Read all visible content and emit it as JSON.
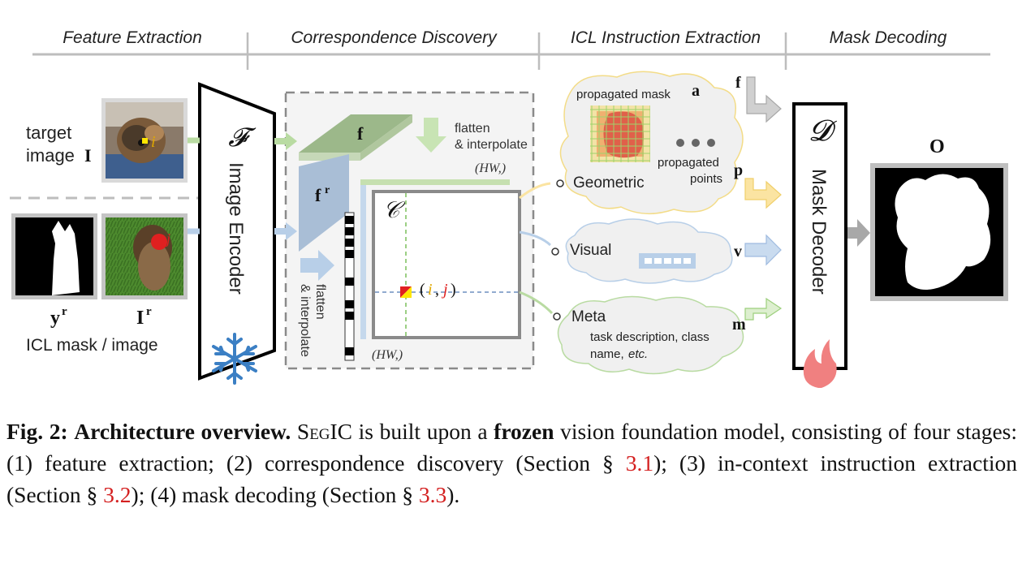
{
  "stages": [
    "Feature Extraction",
    "Correspondence Discovery",
    "ICL Instruction Extraction",
    "Mask Decoding"
  ],
  "inputs": {
    "target_label_line1": "target",
    "target_label_line2": "image",
    "target_symbol": "I",
    "point_label": "i",
    "ref_mask_symbol": "y",
    "ref_image_symbol": "I",
    "ref_superscript": "r",
    "ref_point_label": "j",
    "icl_label": "ICL mask / image"
  },
  "encoder": {
    "symbol": "𝓕",
    "label": "Image Encoder"
  },
  "correspondence": {
    "f_label": "f",
    "fr_label": "f",
    "fr_sup": "r",
    "flatten_top_1": "flatten",
    "flatten_top_2": "& interpolate",
    "flatten_side_1": "flatten",
    "flatten_side_2": "& interpolate",
    "hw_top": "(HW,)",
    "hw_bottom": "(HW,)",
    "C_symbol": "𝒞",
    "ij_open": "(",
    "ij_i": "i",
    "ij_comma": ",",
    "ij_j": "j",
    "ij_close": ")"
  },
  "instructions": {
    "propagated_mask": "propagated mask",
    "a_label": "a",
    "propagated_points_1": "propagated",
    "propagated_points_2": "points",
    "geometric": "Geometric",
    "p_label": "p",
    "f_arrow_label": "f",
    "visual": "Visual",
    "v_label": "v",
    "meta": "Meta",
    "m_label": "m",
    "task_desc_1": "task description, class",
    "task_desc_2a": "name, ",
    "task_desc_2b": "etc."
  },
  "decoder": {
    "symbol": "𝓓",
    "label": "Mask Decoder"
  },
  "output": {
    "symbol": "O"
  },
  "caption": {
    "fig": "Fig. 2:",
    "title": "Architecture overview.",
    "name": "SegIC",
    "t1": " is built upon a ",
    "frozen": "frozen",
    "t2": " vision foundation model, consisting of four stages: (1) feature extraction; (2) correspondence discovery (Section § ",
    "ref1": "3.1",
    "t3": "); (3) in-context instruction extraction (Section § ",
    "ref2": "3.2",
    "t4": "); (4) mask decoding (Section § ",
    "ref3": "3.3",
    "t5": ")."
  },
  "colors": {
    "green_arrow": "#b9dba2",
    "blue_arrow": "#b8cfe8",
    "yellow_arrow": "#fbe4a2",
    "gray_arrow": "#bfbfbf",
    "ref_red": "#d42020"
  }
}
